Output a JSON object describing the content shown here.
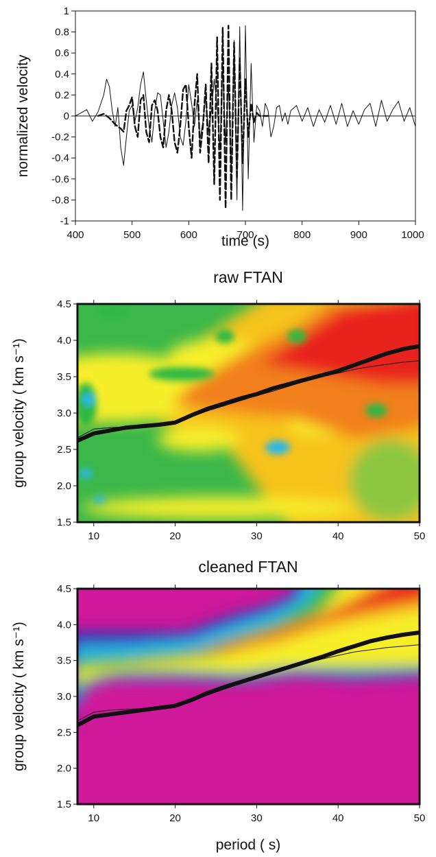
{
  "chart_data": [
    {
      "type": "line",
      "title": "",
      "xlabel": "time (s)",
      "ylabel": "normalized velocity",
      "xlim": [
        400,
        1000
      ],
      "ylim": [
        -1,
        1
      ],
      "xticks": [
        "400",
        "500",
        "600",
        "700",
        "800",
        "900",
        "1000"
      ],
      "yticks": [
        "1",
        "0.8",
        "0.6",
        "0.4",
        "0.2",
        "0",
        "-0.2",
        "-0.4",
        "-0.6",
        "-0.8",
        "-1"
      ],
      "series": [
        {
          "style": "thin solid",
          "x": [
            400,
            410,
            420,
            430,
            440,
            450,
            455,
            460,
            465,
            470,
            475,
            480,
            485,
            490,
            495,
            500,
            505,
            510,
            515,
            520,
            525,
            530,
            535,
            540,
            545,
            550,
            555,
            560,
            565,
            570,
            575,
            580,
            585,
            590,
            595,
            600,
            605,
            610,
            615,
            620,
            625,
            630,
            635,
            640,
            645,
            650,
            655,
            660,
            665,
            670,
            675,
            680,
            685,
            690,
            695,
            700,
            705,
            710,
            715,
            720,
            725,
            730,
            735,
            740,
            745,
            750,
            755,
            760,
            765,
            770,
            775,
            780,
            790,
            800,
            810,
            820,
            830,
            840,
            850,
            860,
            870,
            880,
            890,
            900,
            910,
            920,
            930,
            940,
            950,
            960,
            970,
            980,
            990,
            1000
          ],
          "y": [
            0,
            0.03,
            0.06,
            -0.05,
            0.04,
            0.2,
            0.35,
            0.28,
            0.05,
            -0.1,
            0.08,
            -0.3,
            -0.47,
            -0.2,
            0.05,
            0.1,
            -0.05,
            0.08,
            0.3,
            0.42,
            0.15,
            -0.1,
            -0.25,
            0.05,
            0.22,
            0.2,
            -0.05,
            -0.3,
            -0.15,
            0.1,
            0.22,
            0.08,
            -0.2,
            -0.28,
            -0.05,
            0.3,
            0.12,
            -0.1,
            0.15,
            -0.22,
            -0.05,
            0.18,
            -0.15,
            0.05,
            0.35,
            0.1,
            -0.3,
            0.48,
            -0.25,
            0.3,
            -0.55,
            0.72,
            -0.8,
            0.85,
            -0.9,
            0.86,
            -0.6,
            0.5,
            -0.25,
            0.1,
            0.05,
            -0.1,
            0.12,
            0.05,
            -0.2,
            -0.1,
            0.08,
            0.1,
            -0.05,
            0.03,
            -0.08,
            0.05,
            0.1,
            -0.05,
            0.08,
            -0.1,
            0.06,
            -0.06,
            0.1,
            -0.08,
            0.12,
            -0.1,
            0.05,
            -0.08,
            0.06,
            0.12,
            -0.1,
            0.15,
            -0.05,
            0.06,
            0.14,
            -0.05,
            0.08,
            -0.1
          ]
        },
        {
          "style": "thick dashed",
          "x": [
            440,
            450,
            460,
            470,
            475,
            480,
            485,
            490,
            495,
            500,
            505,
            510,
            515,
            520,
            525,
            530,
            535,
            540,
            545,
            550,
            555,
            560,
            565,
            570,
            575,
            580,
            585,
            590,
            595,
            600,
            605,
            610,
            615,
            620,
            625,
            630,
            635,
            640,
            645,
            650,
            655,
            660,
            665,
            670,
            675,
            680,
            685,
            690,
            695,
            700,
            705,
            710,
            715,
            720,
            725,
            730,
            740
          ],
          "y": [
            0,
            0.02,
            -0.02,
            -0.08,
            -0.1,
            -0.12,
            -0.15,
            0.05,
            0.1,
            0.18,
            -0.1,
            -0.2,
            0.15,
            0.2,
            -0.15,
            -0.25,
            0.1,
            0.15,
            0.05,
            -0.2,
            -0.3,
            0.05,
            0.2,
            0.05,
            -0.25,
            -0.35,
            -0.1,
            0.25,
            0.3,
            -0.1,
            -0.4,
            0.1,
            0.4,
            -0.35,
            -0.1,
            0.3,
            -0.45,
            0.5,
            -0.65,
            0.75,
            -0.8,
            0.84,
            -0.88,
            0.86,
            -0.8,
            0.7,
            -0.6,
            0.55,
            -0.45,
            0.35,
            -0.2,
            0.12,
            -0.06,
            0.03,
            0,
            0,
            0
          ]
        }
      ]
    },
    {
      "type": "heatmap",
      "title": "raw FTAN",
      "xlabel": "",
      "ylabel": "group velocity  ( km s⁻¹)",
      "xlim": [
        8,
        50
      ],
      "ylim": [
        1.5,
        4.5
      ],
      "xticks": [
        "10",
        "20",
        "30",
        "40",
        "50"
      ],
      "yticks": [
        "4.5",
        "4.0",
        "3.5",
        "3.0",
        "2.5",
        "2.0",
        "1.5"
      ],
      "colors": [
        "#d0189a",
        "#2b2fb5",
        "#2bb7e8",
        "#2fb843",
        "#8cc63f",
        "#f7ee2a",
        "#f6a21e",
        "#e8201d"
      ],
      "series": [
        {
          "name": "",
          "style": "thick",
          "x": [
            8,
            10,
            12,
            14,
            16,
            18,
            20,
            22,
            24,
            26,
            28,
            30,
            32,
            34,
            36,
            38,
            40,
            42,
            44,
            46,
            48,
            50
          ],
          "y": [
            2.62,
            2.72,
            2.76,
            2.8,
            2.82,
            2.84,
            2.87,
            2.97,
            3.06,
            3.13,
            3.2,
            3.26,
            3.34,
            3.4,
            3.46,
            3.52,
            3.58,
            3.66,
            3.74,
            3.82,
            3.88,
            3.92
          ]
        },
        {
          "name": "",
          "style": "thin",
          "x": [
            8,
            10,
            12,
            14,
            16,
            18,
            20,
            22,
            24,
            26,
            28,
            30,
            32,
            34,
            36,
            38,
            40,
            42,
            44,
            46,
            48,
            50
          ],
          "y": [
            2.66,
            2.78,
            2.8,
            2.81,
            2.82,
            2.83,
            2.86,
            2.95,
            3.03,
            3.1,
            3.17,
            3.24,
            3.3,
            3.37,
            3.44,
            3.5,
            3.55,
            3.6,
            3.64,
            3.67,
            3.7,
            3.72
          ]
        }
      ]
    },
    {
      "type": "heatmap",
      "title": "cleaned FTAN",
      "xlabel": "period ( s)",
      "ylabel": "group velocity  ( km s⁻¹)",
      "xlim": [
        8,
        50
      ],
      "ylim": [
        1.5,
        4.5
      ],
      "xticks": [
        "10",
        "20",
        "30",
        "40",
        "50"
      ],
      "yticks": [
        "4.5",
        "4.0",
        "3.5",
        "3.0",
        "2.5",
        "2.0",
        "1.5"
      ],
      "colors": [
        "#d0189a",
        "#2b2fb5",
        "#2bb7e8",
        "#2fb843",
        "#8cc63f",
        "#f7ee2a",
        "#f6a21e",
        "#e8201d"
      ],
      "series": [
        {
          "name": "",
          "style": "thick",
          "x": [
            8,
            10,
            12,
            14,
            16,
            18,
            20,
            22,
            24,
            26,
            28,
            30,
            32,
            34,
            36,
            38,
            40,
            42,
            44,
            46,
            48,
            50
          ],
          "y": [
            2.6,
            2.72,
            2.75,
            2.78,
            2.81,
            2.84,
            2.87,
            2.95,
            3.05,
            3.13,
            3.2,
            3.27,
            3.34,
            3.41,
            3.48,
            3.55,
            3.63,
            3.7,
            3.77,
            3.82,
            3.86,
            3.89
          ]
        },
        {
          "name": "",
          "style": "thin",
          "x": [
            8,
            10,
            12,
            14,
            16,
            18,
            20,
            22,
            24,
            26,
            28,
            30,
            32,
            34,
            36,
            38,
            40,
            42,
            44,
            46,
            48,
            50
          ],
          "y": [
            2.66,
            2.78,
            2.81,
            2.82,
            2.83,
            2.84,
            2.86,
            2.93,
            3.02,
            3.1,
            3.18,
            3.25,
            3.32,
            3.39,
            3.46,
            3.52,
            3.57,
            3.62,
            3.65,
            3.68,
            3.7,
            3.72
          ]
        }
      ]
    }
  ]
}
